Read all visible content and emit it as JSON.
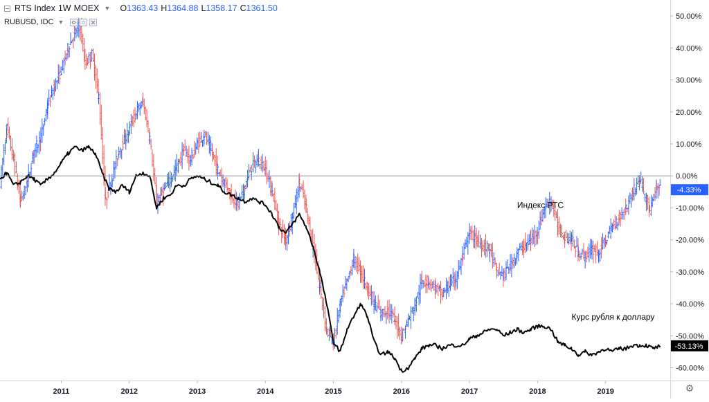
{
  "header": {
    "symbol": "RTS Index",
    "interval": "1W",
    "exchange": "MOEX",
    "ohlc": [
      {
        "k": "O",
        "v": "1363.43"
      },
      {
        "k": "H",
        "v": "1364.88"
      },
      {
        "k": "L",
        "v": "1358.17"
      },
      {
        "k": "C",
        "v": "1361.50"
      }
    ],
    "compare_symbol": "RUBUSD, IDC"
  },
  "colors": {
    "up": "#2962ff",
    "down": "#ef5350",
    "compare_line": "#000000",
    "zero_line": "#9598a1",
    "axis_text": "#131722",
    "rts_badge": "#2962ff",
    "rub_badge": "#000000"
  },
  "chart_data": {
    "type": "line",
    "title": "",
    "x_ticks": [
      "2011",
      "2012",
      "2013",
      "2014",
      "2015",
      "2016",
      "2017",
      "2018",
      "2019"
    ],
    "y_ticks": [
      "50.00%",
      "40.00%",
      "30.00%",
      "20.00%",
      "10.00%",
      "0.00%",
      "-10.00%",
      "-20.00%",
      "-30.00%",
      "-40.00%",
      "-50.00%",
      "-60.00%"
    ],
    "ylim": [
      -64,
      55
    ],
    "xlim": [
      2010.1,
      2019.95
    ],
    "series": [
      {
        "name": "RTS Index",
        "style": "ohlc-bars",
        "last_value_label": "-4.33%",
        "points": [
          [
            2010.1,
            -2
          ],
          [
            2010.2,
            15
          ],
          [
            2010.3,
            5
          ],
          [
            2010.4,
            -8
          ],
          [
            2010.5,
            -2
          ],
          [
            2010.6,
            8
          ],
          [
            2010.7,
            12
          ],
          [
            2010.8,
            22
          ],
          [
            2010.9,
            28
          ],
          [
            2011.0,
            33
          ],
          [
            2011.1,
            40
          ],
          [
            2011.2,
            45
          ],
          [
            2011.28,
            46
          ],
          [
            2011.35,
            35
          ],
          [
            2011.45,
            38
          ],
          [
            2011.55,
            25
          ],
          [
            2011.65,
            -8
          ],
          [
            2011.75,
            0
          ],
          [
            2011.85,
            8
          ],
          [
            2011.95,
            12
          ],
          [
            2012.1,
            20
          ],
          [
            2012.2,
            23
          ],
          [
            2012.3,
            12
          ],
          [
            2012.4,
            -8
          ],
          [
            2012.5,
            -5
          ],
          [
            2012.6,
            -1
          ],
          [
            2012.7,
            3
          ],
          [
            2012.8,
            8
          ],
          [
            2012.9,
            5
          ],
          [
            2013.0,
            10
          ],
          [
            2013.1,
            13
          ],
          [
            2013.2,
            8
          ],
          [
            2013.3,
            2
          ],
          [
            2013.4,
            -2
          ],
          [
            2013.5,
            -6
          ],
          [
            2013.6,
            -9
          ],
          [
            2013.7,
            -3
          ],
          [
            2013.8,
            3
          ],
          [
            2013.9,
            5
          ],
          [
            2014.0,
            2
          ],
          [
            2014.1,
            -5
          ],
          [
            2014.2,
            -15
          ],
          [
            2014.3,
            -20
          ],
          [
            2014.4,
            -12
          ],
          [
            2014.5,
            -2
          ],
          [
            2014.6,
            -10
          ],
          [
            2014.7,
            -22
          ],
          [
            2014.8,
            -35
          ],
          [
            2014.9,
            -48
          ],
          [
            2015.0,
            -52
          ],
          [
            2015.1,
            -40
          ],
          [
            2015.2,
            -33
          ],
          [
            2015.3,
            -26
          ],
          [
            2015.4,
            -30
          ],
          [
            2015.5,
            -35
          ],
          [
            2015.6,
            -40
          ],
          [
            2015.7,
            -43
          ],
          [
            2015.8,
            -42
          ],
          [
            2015.9,
            -45
          ],
          [
            2016.0,
            -50
          ],
          [
            2016.1,
            -45
          ],
          [
            2016.2,
            -40
          ],
          [
            2016.3,
            -33
          ],
          [
            2016.4,
            -33
          ],
          [
            2016.5,
            -35
          ],
          [
            2016.6,
            -37
          ],
          [
            2016.7,
            -34
          ],
          [
            2016.8,
            -32
          ],
          [
            2016.9,
            -25
          ],
          [
            2017.0,
            -18
          ],
          [
            2017.1,
            -20
          ],
          [
            2017.2,
            -22
          ],
          [
            2017.3,
            -23
          ],
          [
            2017.4,
            -30
          ],
          [
            2017.5,
            -31
          ],
          [
            2017.6,
            -28
          ],
          [
            2017.7,
            -24
          ],
          [
            2017.8,
            -22
          ],
          [
            2017.9,
            -20
          ],
          [
            2018.0,
            -17
          ],
          [
            2018.1,
            -10
          ],
          [
            2018.2,
            -8
          ],
          [
            2018.3,
            -16
          ],
          [
            2018.4,
            -19
          ],
          [
            2018.5,
            -20
          ],
          [
            2018.6,
            -24
          ],
          [
            2018.7,
            -25
          ],
          [
            2018.8,
            -23
          ],
          [
            2018.9,
            -24
          ],
          [
            2019.0,
            -20
          ],
          [
            2019.1,
            -16
          ],
          [
            2019.2,
            -13
          ],
          [
            2019.3,
            -10
          ],
          [
            2019.4,
            -5
          ],
          [
            2019.5,
            -1
          ],
          [
            2019.6,
            -7
          ],
          [
            2019.65,
            -11
          ],
          [
            2019.75,
            -4
          ],
          [
            2019.8,
            -4.33
          ]
        ]
      },
      {
        "name": "RUBUSD, IDC",
        "style": "line",
        "last_value_label": "-53.13%",
        "points": [
          [
            2010.1,
            -1
          ],
          [
            2010.2,
            1
          ],
          [
            2010.3,
            -3
          ],
          [
            2010.4,
            -2
          ],
          [
            2010.5,
            0
          ],
          [
            2010.6,
            -1
          ],
          [
            2010.7,
            -3
          ],
          [
            2010.8,
            -1
          ],
          [
            2010.9,
            1
          ],
          [
            2011.0,
            4
          ],
          [
            2011.1,
            7
          ],
          [
            2011.2,
            9
          ],
          [
            2011.3,
            8
          ],
          [
            2011.4,
            9
          ],
          [
            2011.5,
            7
          ],
          [
            2011.6,
            1
          ],
          [
            2011.7,
            -4
          ],
          [
            2011.8,
            -5
          ],
          [
            2011.9,
            -3
          ],
          [
            2012.0,
            -5
          ],
          [
            2012.1,
            0
          ],
          [
            2012.2,
            1
          ],
          [
            2012.3,
            0
          ],
          [
            2012.4,
            -10
          ],
          [
            2012.5,
            -7
          ],
          [
            2012.6,
            -6
          ],
          [
            2012.7,
            -3
          ],
          [
            2012.8,
            -3
          ],
          [
            2012.9,
            -1
          ],
          [
            2013.0,
            0
          ],
          [
            2013.1,
            -1
          ],
          [
            2013.2,
            -2
          ],
          [
            2013.3,
            -3
          ],
          [
            2013.4,
            -5
          ],
          [
            2013.5,
            -6
          ],
          [
            2013.6,
            -7
          ],
          [
            2013.7,
            -8
          ],
          [
            2013.8,
            -7
          ],
          [
            2013.9,
            -8
          ],
          [
            2014.0,
            -9
          ],
          [
            2014.1,
            -12
          ],
          [
            2014.2,
            -16
          ],
          [
            2014.3,
            -18
          ],
          [
            2014.4,
            -15
          ],
          [
            2014.5,
            -12
          ],
          [
            2014.6,
            -16
          ],
          [
            2014.7,
            -22
          ],
          [
            2014.8,
            -30
          ],
          [
            2014.9,
            -40
          ],
          [
            2015.0,
            -52
          ],
          [
            2015.1,
            -55
          ],
          [
            2015.2,
            -48
          ],
          [
            2015.3,
            -44
          ],
          [
            2015.4,
            -40
          ],
          [
            2015.5,
            -44
          ],
          [
            2015.6,
            -52
          ],
          [
            2015.7,
            -56
          ],
          [
            2015.8,
            -55
          ],
          [
            2015.9,
            -57
          ],
          [
            2016.0,
            -61
          ],
          [
            2016.1,
            -60
          ],
          [
            2016.2,
            -57
          ],
          [
            2016.3,
            -54
          ],
          [
            2016.4,
            -53
          ],
          [
            2016.5,
            -53
          ],
          [
            2016.6,
            -54
          ],
          [
            2016.7,
            -53
          ],
          [
            2016.8,
            -53
          ],
          [
            2016.9,
            -53
          ],
          [
            2017.0,
            -51
          ],
          [
            2017.1,
            -50
          ],
          [
            2017.2,
            -49
          ],
          [
            2017.3,
            -48
          ],
          [
            2017.4,
            -48
          ],
          [
            2017.5,
            -50
          ],
          [
            2017.6,
            -49
          ],
          [
            2017.7,
            -48
          ],
          [
            2017.8,
            -49
          ],
          [
            2017.9,
            -48
          ],
          [
            2018.0,
            -47
          ],
          [
            2018.1,
            -47
          ],
          [
            2018.2,
            -48
          ],
          [
            2018.3,
            -52
          ],
          [
            2018.4,
            -53
          ],
          [
            2018.5,
            -54
          ],
          [
            2018.6,
            -56
          ],
          [
            2018.7,
            -55
          ],
          [
            2018.8,
            -56
          ],
          [
            2018.9,
            -55
          ],
          [
            2019.0,
            -54
          ],
          [
            2019.1,
            -55
          ],
          [
            2019.2,
            -54
          ],
          [
            2019.3,
            -54
          ],
          [
            2019.4,
            -53
          ],
          [
            2019.5,
            -53
          ],
          [
            2019.6,
            -53
          ],
          [
            2019.7,
            -54
          ],
          [
            2019.8,
            -53.13
          ]
        ]
      }
    ],
    "annotations": [
      {
        "text": "Индекс РТС",
        "x": 2017.7,
        "y": -10
      },
      {
        "text": "Курс рубля к доллару",
        "x": 2018.5,
        "y": -45
      }
    ]
  }
}
